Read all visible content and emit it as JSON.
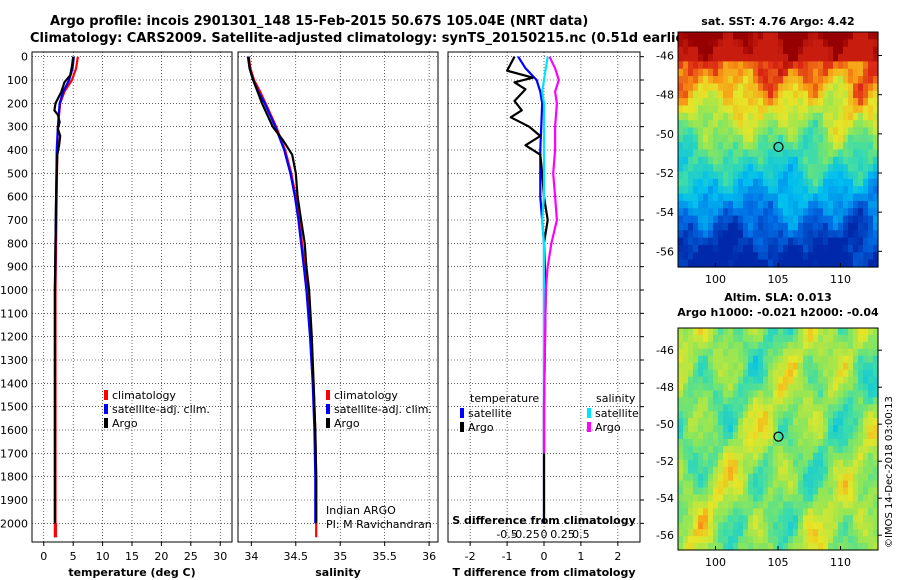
{
  "header": {
    "line1": "Argo profile: incois 2901301_148 15-Feb-2015 50.67S 105.04E (NRT data)",
    "line2": "Climatology: CARS2009. Satellite-adjusted climatology: synTS_20150215.nc (0.51d earlier)"
  },
  "colors": {
    "climatology": "#ff0000",
    "satellite": "#0000ff",
    "argo": "#000000",
    "sal_satellite": "#00e5ff",
    "sal_argo": "#ff00ff"
  },
  "chart_data": [
    {
      "type": "line",
      "id": "temperature",
      "xlabel": "temperature (deg C)",
      "xlim": [
        -2,
        32
      ],
      "ylim": [
        2080,
        -20
      ],
      "xticks": [
        0,
        5,
        10,
        15,
        20,
        25,
        30
      ],
      "xtick_labels": [
        "0",
        "5",
        "10",
        "15",
        "20",
        "25",
        "30"
      ],
      "yticks": [
        0,
        100,
        200,
        300,
        400,
        500,
        600,
        700,
        800,
        900,
        1000,
        1100,
        1200,
        1300,
        1400,
        1500,
        1600,
        1700,
        1800,
        1900,
        2000
      ],
      "yticklabels": [
        "0",
        "100",
        "200",
        "300",
        "400",
        "500",
        "600",
        "700",
        "800",
        "900",
        "1000",
        "1100",
        "1200",
        "1300",
        "1400",
        "1500",
        "1600",
        "1700",
        "1800",
        "1900",
        "2000"
      ],
      "legend": [
        "climatology",
        "satellite-adj. clim.",
        "Argo"
      ],
      "series": [
        {
          "name": "climatology",
          "color": "#ff0000",
          "points": [
            [
              5.8,
              0
            ],
            [
              5.5,
              50
            ],
            [
              4.8,
              100
            ],
            [
              3.5,
              150
            ],
            [
              2.8,
              200
            ],
            [
              2.4,
              300
            ],
            [
              2.3,
              400
            ],
            [
              2.2,
              600
            ],
            [
              2.1,
              800
            ],
            [
              2.0,
              1000
            ],
            [
              2.0,
              1500
            ],
            [
              2.0,
              2000
            ],
            [
              2.0,
              2060
            ]
          ]
        },
        {
          "name": "satellite-adj. clim.",
          "color": "#0000ff",
          "points": [
            [
              5.1,
              0
            ],
            [
              4.9,
              50
            ],
            [
              4.3,
              100
            ],
            [
              3.3,
              150
            ],
            [
              2.7,
              200
            ],
            [
              2.4,
              300
            ],
            [
              2.2,
              400
            ],
            [
              2.1,
              600
            ],
            [
              2.0,
              800
            ],
            [
              1.9,
              1000
            ],
            [
              1.9,
              1500
            ],
            [
              1.9,
              2000
            ],
            [
              1.9,
              2060
            ]
          ]
        },
        {
          "name": "Argo",
          "color": "#000000",
          "points": [
            [
              5.0,
              0
            ],
            [
              4.8,
              40
            ],
            [
              4.5,
              80
            ],
            [
              3.5,
              110
            ],
            [
              3.0,
              150
            ],
            [
              2.0,
              200
            ],
            [
              1.8,
              230
            ],
            [
              2.4,
              250
            ],
            [
              2.7,
              280
            ],
            [
              2.4,
              310
            ],
            [
              2.8,
              340
            ],
            [
              2.6,
              380
            ],
            [
              2.3,
              420
            ],
            [
              2.2,
              500
            ],
            [
              2.1,
              600
            ],
            [
              2.0,
              800
            ],
            [
              1.9,
              1000
            ],
            [
              1.9,
              1500
            ],
            [
              1.9,
              2000
            ]
          ]
        }
      ]
    },
    {
      "type": "line",
      "id": "salinity",
      "xlabel": "salinity",
      "xlim": [
        33.85,
        36.1
      ],
      "ylim": [
        2080,
        -20
      ],
      "xticks": [
        34,
        34.5,
        35,
        35.5,
        36
      ],
      "xtick_labels": [
        "34",
        "34.5",
        "35",
        "35.5",
        "36"
      ],
      "legend": [
        "climatology",
        "satellite-adj. clim.",
        "Argo"
      ],
      "annotations": [
        "Indian ARGO",
        "PI: M Ravichandran"
      ],
      "series": [
        {
          "name": "climatology",
          "color": "#ff0000",
          "points": [
            [
              33.97,
              0
            ],
            [
              33.99,
              50
            ],
            [
              34.03,
              100
            ],
            [
              34.1,
              150
            ],
            [
              34.16,
              200
            ],
            [
              34.28,
              300
            ],
            [
              34.38,
              400
            ],
            [
              34.45,
              500
            ],
            [
              34.5,
              600
            ],
            [
              34.54,
              700
            ],
            [
              34.57,
              800
            ],
            [
              34.6,
              900
            ],
            [
              34.63,
              1000
            ],
            [
              34.67,
              1200
            ],
            [
              34.7,
              1400
            ],
            [
              34.72,
              1600
            ],
            [
              34.73,
              1800
            ],
            [
              34.73,
              2060
            ]
          ]
        },
        {
          "name": "satellite-adj. clim.",
          "color": "#0000ff",
          "points": [
            [
              33.96,
              0
            ],
            [
              33.98,
              50
            ],
            [
              34.02,
              100
            ],
            [
              34.08,
              150
            ],
            [
              34.15,
              200
            ],
            [
              34.27,
              300
            ],
            [
              34.37,
              400
            ],
            [
              34.44,
              500
            ],
            [
              34.49,
              600
            ],
            [
              34.53,
              700
            ],
            [
              34.56,
              800
            ],
            [
              34.59,
              900
            ],
            [
              34.62,
              1000
            ],
            [
              34.66,
              1200
            ],
            [
              34.69,
              1400
            ],
            [
              34.71,
              1600
            ],
            [
              34.72,
              1800
            ],
            [
              34.72,
              2000
            ]
          ]
        },
        {
          "name": "Argo",
          "color": "#000000",
          "points": [
            [
              33.97,
              0
            ],
            [
              33.98,
              50
            ],
            [
              34.02,
              100
            ],
            [
              34.07,
              150
            ],
            [
              34.12,
              200
            ],
            [
              34.24,
              300
            ],
            [
              34.36,
              360
            ],
            [
              34.46,
              420
            ],
            [
              34.5,
              500
            ],
            [
              34.52,
              600
            ],
            [
              34.56,
              700
            ],
            [
              34.6,
              800
            ],
            [
              34.62,
              900
            ],
            [
              34.65,
              1000
            ],
            [
              34.68,
              1200
            ],
            [
              34.7,
              1400
            ],
            [
              34.72,
              1600
            ],
            [
              34.73,
              1800
            ],
            [
              34.73,
              2000
            ]
          ]
        }
      ]
    },
    {
      "type": "line",
      "id": "differences",
      "xlabel": "T difference from climatology",
      "xlabel2": "S difference from climatology",
      "xlim": [
        -2.6,
        2.6
      ],
      "ylim": [
        2080,
        -20
      ],
      "xticks": [
        -2,
        -1,
        0,
        1,
        2
      ],
      "xtick_labels": [
        "-2",
        "-1",
        "0",
        "1",
        "2"
      ],
      "xticks2": [
        -1,
        -0.5,
        0,
        0.5,
        1
      ],
      "xtick_labels2": [
        "-0.5",
        "-0.25",
        "0",
        "0.25",
        "0.5"
      ],
      "legend_left_title": "temperature",
      "legend_right_title": "salinity",
      "legend_left": [
        "satellite",
        "Argo"
      ],
      "legend_right": [
        "satellite",
        "Argo"
      ],
      "series": [
        {
          "name": "T satellite",
          "color": "#0000ff",
          "points": [
            [
              -0.7,
              0
            ],
            [
              -0.5,
              50
            ],
            [
              -0.2,
              100
            ],
            [
              -0.1,
              150
            ],
            [
              -0.05,
              200
            ],
            [
              -0.1,
              400
            ],
            [
              -0.1,
              600
            ],
            [
              0,
              800
            ],
            [
              0,
              1000
            ],
            [
              0,
              2000
            ]
          ]
        },
        {
          "name": "T Argo",
          "color": "#000000",
          "points": [
            [
              -0.8,
              0
            ],
            [
              -0.9,
              30
            ],
            [
              -1.0,
              60
            ],
            [
              -0.3,
              90
            ],
            [
              -0.8,
              110
            ],
            [
              -0.5,
              140
            ],
            [
              -0.8,
              190
            ],
            [
              -0.6,
              230
            ],
            [
              -0.9,
              260
            ],
            [
              -0.4,
              300
            ],
            [
              -0.1,
              340
            ],
            [
              -0.5,
              380
            ],
            [
              -0.1,
              420
            ],
            [
              -0.05,
              500
            ],
            [
              0,
              600
            ],
            [
              0.1,
              700
            ],
            [
              0,
              800
            ],
            [
              0.05,
              1000
            ],
            [
              0,
              1500
            ],
            [
              0,
              2000
            ]
          ]
        },
        {
          "name": "S satellite",
          "color": "#00e5ff",
          "points": [
            [
              0.1,
              0
            ],
            [
              0.05,
              50
            ],
            [
              0,
              100
            ],
            [
              -0.05,
              150
            ],
            [
              0,
              200
            ],
            [
              0,
              400
            ],
            [
              0,
              600
            ],
            [
              -0.05,
              700
            ],
            [
              0,
              800
            ],
            [
              0,
              1000
            ],
            [
              0,
              1400
            ],
            [
              0,
              1500
            ],
            [
              0,
              1700
            ]
          ]
        },
        {
          "name": "S Argo",
          "color": "#ff00ff",
          "points": [
            [
              0.15,
              0
            ],
            [
              0.3,
              50
            ],
            [
              0.4,
              100
            ],
            [
              0.3,
              150
            ],
            [
              0.35,
              200
            ],
            [
              0.3,
              300
            ],
            [
              0.3,
              400
            ],
            [
              0.25,
              500
            ],
            [
              0.3,
              600
            ],
            [
              0.35,
              700
            ],
            [
              0.2,
              800
            ],
            [
              0.1,
              900
            ],
            [
              0.05,
              1000
            ],
            [
              0,
              1500
            ],
            [
              0,
              1700
            ]
          ]
        }
      ]
    },
    {
      "type": "heatmap",
      "id": "sst-map",
      "title": "sat. SST: 4.76 Argo: 4.42",
      "xticks": [
        100,
        105,
        110
      ],
      "xtick_labels": [
        "100",
        "105",
        "110"
      ],
      "yticks": [
        -46,
        -48,
        -50,
        -52,
        -54,
        -56
      ],
      "ytick_labels": [
        "-46",
        "-48",
        "-50",
        "-52",
        "-54",
        "-56"
      ],
      "xlim": [
        97,
        113
      ],
      "ylim": [
        -56.8,
        -44.8
      ],
      "argo_position": [
        105.04,
        -50.67
      ]
    },
    {
      "type": "heatmap",
      "id": "sla-map",
      "title": "Altim. SLA: 0.013",
      "subtitle": "Argo h1000: -0.021 h2000: -0.04",
      "xticks": [
        100,
        105,
        110
      ],
      "xtick_labels": [
        "100",
        "105",
        "110"
      ],
      "yticks": [
        -46,
        -48,
        -50,
        -52,
        -54,
        -56
      ],
      "ytick_labels": [
        "-46",
        "-48",
        "-50",
        "-52",
        "-54",
        "-56"
      ],
      "xlim": [
        97,
        113
      ],
      "ylim": [
        -56.8,
        -44.8
      ],
      "argo_position": [
        105.04,
        -50.67
      ]
    }
  ],
  "credit": "©IMOS 14-Dec-2018 03:00:13"
}
